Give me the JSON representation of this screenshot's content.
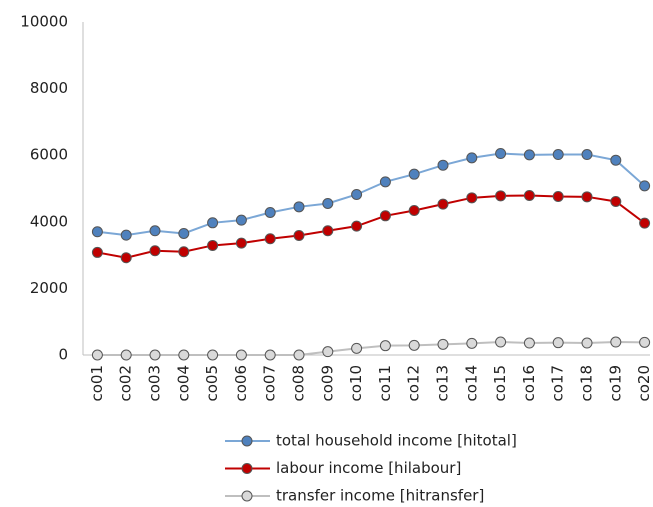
{
  "chart_data": {
    "type": "line",
    "categories": [
      "co01",
      "co02",
      "co03",
      "co04",
      "co05",
      "co06",
      "co07",
      "co08",
      "co09",
      "co10",
      "co11",
      "co12",
      "co13",
      "co14",
      "co15",
      "co16",
      "co17",
      "co18",
      "co19",
      "co20"
    ],
    "series": [
      {
        "name": "total household income [hitotal]",
        "color": "#7ba7d6",
        "marker": "#4f81bd",
        "values": [
          3700,
          3600,
          3730,
          3650,
          3970,
          4050,
          4280,
          4450,
          4550,
          4820,
          5200,
          5430,
          5700,
          5920,
          6050,
          6010,
          6020,
          6020,
          5850,
          5080
        ]
      },
      {
        "name": "labour income [hilabour]",
        "color": "#c00000",
        "marker": "#c00000",
        "values": [
          3080,
          2920,
          3130,
          3100,
          3290,
          3360,
          3490,
          3590,
          3730,
          3870,
          4180,
          4340,
          4530,
          4720,
          4780,
          4790,
          4760,
          4750,
          4610,
          3960
        ]
      },
      {
        "name": "transfer income [hitransfer]",
        "color": "#bfbfbf",
        "marker": "#d9d9d9",
        "values": [
          0,
          0,
          0,
          0,
          0,
          0,
          0,
          0,
          100,
          200,
          280,
          290,
          320,
          350,
          390,
          360,
          370,
          360,
          390,
          380
        ]
      }
    ],
    "ylim": [
      0,
      10000
    ],
    "yticks": [
      0,
      2000,
      4000,
      6000,
      8000,
      10000
    ],
    "grid": false,
    "legend": "bottom"
  }
}
